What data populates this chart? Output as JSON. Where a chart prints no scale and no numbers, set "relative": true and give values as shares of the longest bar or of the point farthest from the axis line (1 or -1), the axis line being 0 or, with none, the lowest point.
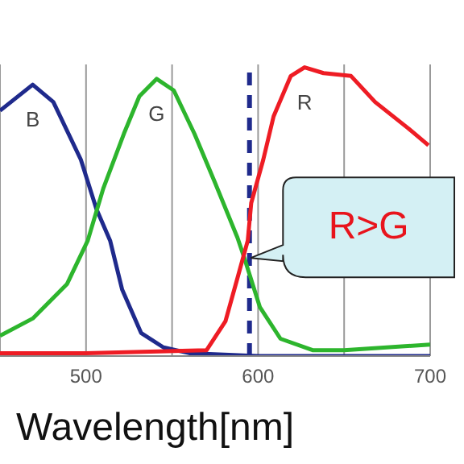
{
  "chart_data": {
    "type": "line",
    "xlabel": "Wavelength[nm]",
    "relative": true,
    "xlim": [
      450,
      700
    ],
    "xticks": [
      500,
      {
        "value": 550,
        "label": null
      },
      600,
      {
        "value": 650,
        "label": null
      },
      700
    ],
    "grid": "x",
    "legend": false,
    "marker": "none",
    "line_style": "solid",
    "tick_labels": "x",
    "series": [
      {
        "name": "B",
        "color": "#1f2a8c",
        "x": [
          450,
          469,
          481,
          497,
          506,
          514,
          521,
          532,
          545,
          560,
          600,
          650,
          700
        ],
        "values": [
          0.85,
          0.94,
          0.88,
          0.68,
          0.51,
          0.4,
          0.23,
          0.08,
          0.03,
          0.01,
          0.0,
          0.0,
          0.0
        ]
      },
      {
        "name": "G",
        "color": "#2db52d",
        "x": [
          450,
          469,
          489,
          501,
          510,
          522,
          531,
          541,
          551,
          563,
          575,
          588,
          592,
          601,
          613,
          632,
          650,
          700
        ],
        "values": [
          0.07,
          0.13,
          0.25,
          0.4,
          0.58,
          0.77,
          0.9,
          0.96,
          0.92,
          0.77,
          0.6,
          0.41,
          0.34,
          0.17,
          0.06,
          0.02,
          0.02,
          0.04
        ]
      },
      {
        "name": "R",
        "color": "#ee1c24",
        "x": [
          450,
          500,
          570,
          581,
          588,
          594,
          596,
          603,
          609,
          619,
          627,
          638,
          654,
          668,
          687,
          699
        ],
        "values": [
          0.01,
          0.01,
          0.02,
          0.12,
          0.27,
          0.4,
          0.53,
          0.68,
          0.83,
          0.97,
          1.0,
          0.98,
          0.97,
          0.88,
          0.79,
          0.73
        ]
      }
    ],
    "ref_lines": [
      {
        "axis": "x",
        "value": 595,
        "color": "#1f2a8c",
        "line_style": "dashed"
      }
    ],
    "annotations": [
      {
        "text": "R>G",
        "x": 592,
        "y": 0.34
      }
    ]
  }
}
